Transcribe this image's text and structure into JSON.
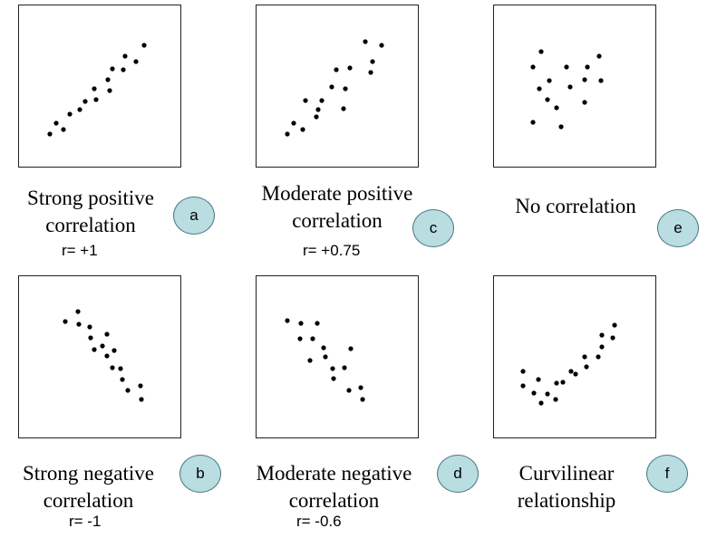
{
  "colors": {
    "badge_fill": "#b9dde0",
    "dot": "#000000"
  },
  "panels": [
    {
      "id": "a",
      "label_lines": [
        "Strong positive",
        "correlation"
      ],
      "r_value": "r= +1",
      "points": [
        [
          55,
          148
        ],
        [
          62,
          136
        ],
        [
          70,
          143
        ],
        [
          77,
          126
        ],
        [
          88,
          121
        ],
        [
          94,
          112
        ],
        [
          104,
          98
        ],
        [
          106,
          110
        ],
        [
          119,
          88
        ],
        [
          121,
          100
        ],
        [
          124,
          76
        ],
        [
          136,
          77
        ],
        [
          138,
          62
        ],
        [
          150,
          68
        ],
        [
          159,
          50
        ]
      ]
    },
    {
      "id": "b",
      "label_lines": [
        "Strong negative",
        "correlation"
      ],
      "r_value": "r= -1",
      "points": [
        [
          72,
          355
        ],
        [
          86,
          344
        ],
        [
          87,
          358
        ],
        [
          99,
          361
        ],
        [
          100,
          373
        ],
        [
          104,
          386
        ],
        [
          113,
          382
        ],
        [
          118,
          369
        ],
        [
          118,
          393
        ],
        [
          124,
          406
        ],
        [
          126,
          387
        ],
        [
          133,
          407
        ],
        [
          135,
          419
        ],
        [
          141,
          431
        ],
        [
          155,
          426
        ],
        [
          156,
          441
        ]
      ]
    },
    {
      "id": "c",
      "label_lines": [
        "Moderate positive",
        "correlation"
      ],
      "r_value": "r= +0.75",
      "points": [
        [
          317,
          148
        ],
        [
          324,
          136
        ],
        [
          334,
          143
        ],
        [
          337,
          111
        ],
        [
          349,
          129
        ],
        [
          351,
          121
        ],
        [
          355,
          111
        ],
        [
          366,
          96
        ],
        [
          371,
          77
        ],
        [
          379,
          120
        ],
        [
          381,
          98
        ],
        [
          386,
          75
        ],
        [
          403,
          46
        ],
        [
          409,
          80
        ],
        [
          411,
          68
        ],
        [
          421,
          50
        ]
      ]
    },
    {
      "id": "d",
      "label_lines": [
        "Moderate negative",
        "correlation"
      ],
      "r_value": "r= -0.6",
      "points": [
        [
          317,
          354
        ],
        [
          332,
          357
        ],
        [
          331,
          374
        ],
        [
          342,
          398
        ],
        [
          345,
          374
        ],
        [
          350,
          357
        ],
        [
          357,
          384
        ],
        [
          359,
          394
        ],
        [
          367,
          407
        ],
        [
          368,
          418
        ],
        [
          380,
          406
        ],
        [
          385,
          431
        ],
        [
          387,
          385
        ],
        [
          398,
          428
        ],
        [
          400,
          441
        ]
      ]
    },
    {
      "id": "e",
      "label_lines": [
        "No correlation"
      ],
      "r_value": "",
      "points": [
        [
          597,
          57
        ],
        [
          588,
          74
        ],
        [
          661,
          62
        ],
        [
          625,
          74
        ],
        [
          648,
          74
        ],
        [
          606,
          89
        ],
        [
          595,
          98
        ],
        [
          645,
          88
        ],
        [
          663,
          89
        ],
        [
          629,
          96
        ],
        [
          604,
          110
        ],
        [
          614,
          119
        ],
        [
          645,
          113
        ],
        [
          588,
          135
        ],
        [
          619,
          140
        ]
      ]
    },
    {
      "id": "f",
      "label_lines": [
        "Curvilinear",
        "relationship"
      ],
      "r_value": "",
      "points": [
        [
          577,
          410
        ],
        [
          577,
          426
        ],
        [
          594,
          419
        ],
        [
          589,
          434
        ],
        [
          597,
          445
        ],
        [
          604,
          435
        ],
        [
          613,
          441
        ],
        [
          614,
          423
        ],
        [
          621,
          422
        ],
        [
          630,
          410
        ],
        [
          635,
          413
        ],
        [
          645,
          394
        ],
        [
          647,
          405
        ],
        [
          660,
          394
        ],
        [
          664,
          383
        ],
        [
          664,
          370
        ],
        [
          676,
          373
        ],
        [
          678,
          359
        ]
      ]
    }
  ]
}
